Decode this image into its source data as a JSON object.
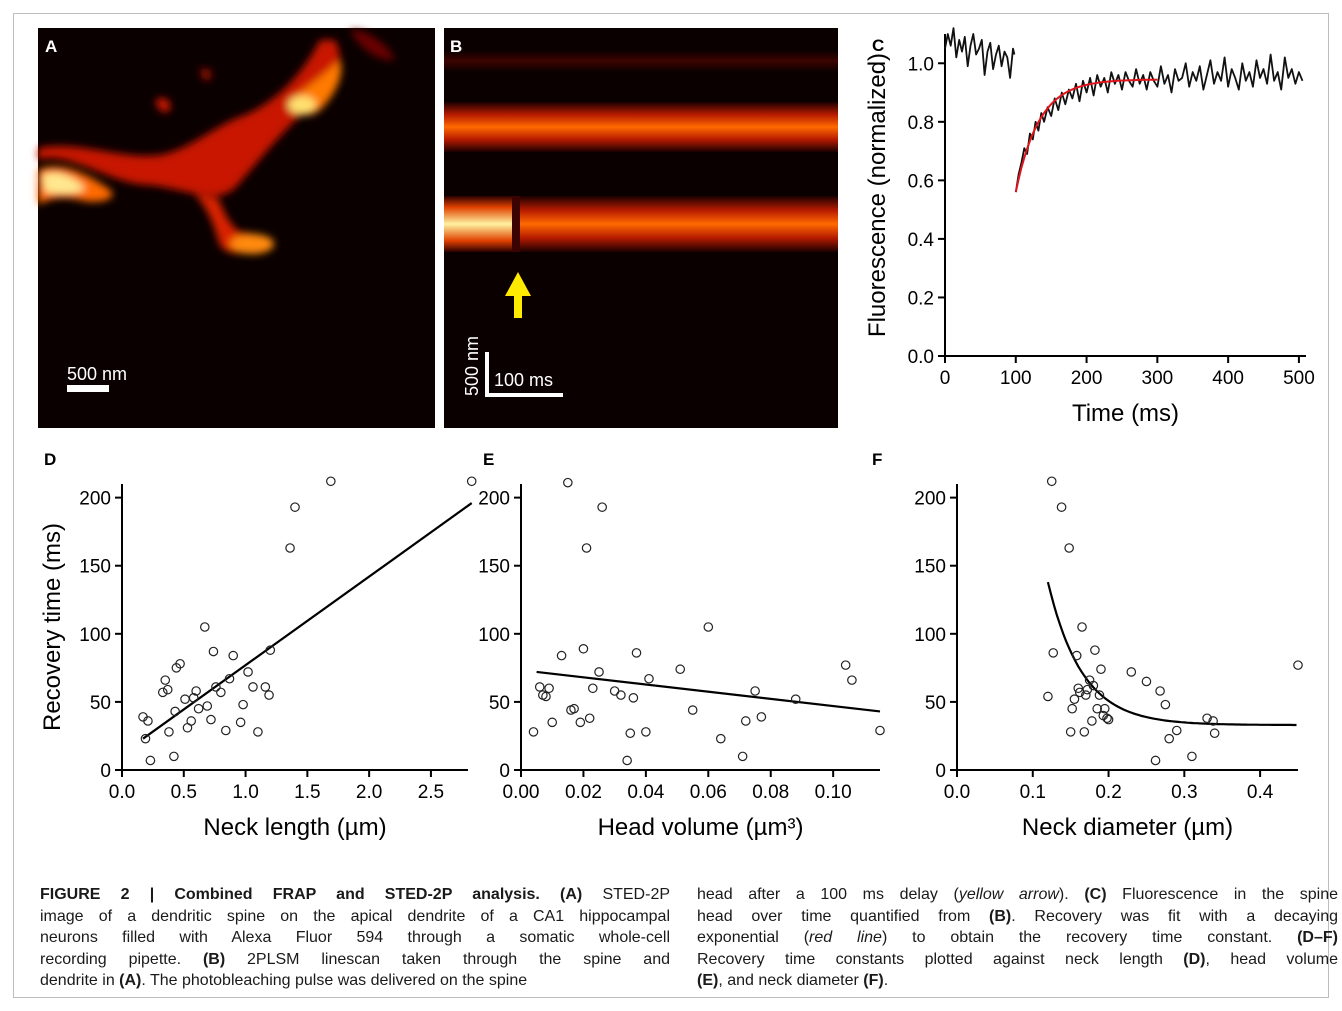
{
  "figure": {
    "panel_labels": [
      "A",
      "B",
      "C",
      "D",
      "E",
      "F"
    ],
    "colors": {
      "background": "#ffffff",
      "image_dark": "#0a0000",
      "hot_red": "#c81400",
      "hot_orange": "#ff7a00",
      "hot_yellow": "#fff6a0",
      "arrow": "#ffea00",
      "fit_line": "#e0141a",
      "trace": "#111111",
      "scatter_marker": "#222222"
    }
  },
  "panel_a": {
    "scalebar_label": "500 nm"
  },
  "panel_b": {
    "scalebar_x_label": "100 ms",
    "scalebar_y_label": "500 nm",
    "arrow_icon": "yellow-up-arrow-icon"
  },
  "caption": {
    "left_lines": [
      [
        {
          "b": "FIGURE 2 | Combined FRAP and STED-2P analysis."
        },
        {
          "t": " "
        },
        {
          "b": "(A)"
        },
        {
          "t": " STED-2P"
        }
      ],
      [
        {
          "t": "image of a dendritic spine on the apical dendrite of a CA1 hippocampal"
        }
      ],
      [
        {
          "t": "neurons filled with Alexa Fluor 594 through a somatic whole-cell"
        }
      ],
      [
        {
          "t": "recording pipette. "
        },
        {
          "b": "(B)"
        },
        {
          "t": " 2PLSM linescan taken through the spine and"
        }
      ],
      [
        {
          "t": "dendrite in "
        },
        {
          "b": "(A)"
        },
        {
          "t": ". The photobleaching pulse was delivered on the spine"
        }
      ]
    ],
    "right_lines": [
      [
        {
          "t": "head after a 100 ms delay ("
        },
        {
          "i": "yellow arrow"
        },
        {
          "t": "). "
        },
        {
          "b": "(C)"
        },
        {
          "t": " Fluorescence in the spine"
        }
      ],
      [
        {
          "t": "head over time quantified from "
        },
        {
          "b": "(B)"
        },
        {
          "t": ". Recovery was fit with a decaying"
        }
      ],
      [
        {
          "t": "exponential ("
        },
        {
          "i": "red line"
        },
        {
          "t": ") to obtain the recovery time constant. "
        },
        {
          "b": "(D–F)"
        }
      ],
      [
        {
          "t": "Recovery time constants plotted against neck length "
        },
        {
          "b": "(D)"
        },
        {
          "t": ", head volume"
        }
      ],
      [
        {
          "b": "(E)"
        },
        {
          "t": ", and neck diameter "
        },
        {
          "b": "(F)"
        },
        {
          "t": "."
        }
      ]
    ]
  },
  "chart_data": [
    {
      "panel": "C",
      "type": "line",
      "xlabel": "Time (ms)",
      "ylabel": "Fluorescence (normalized)",
      "xlim": [
        0,
        510
      ],
      "ylim": [
        0,
        1.1
      ],
      "xticks": [
        0,
        100,
        200,
        300,
        400,
        500
      ],
      "xtick_labels": [
        "0",
        "100",
        "200",
        "300",
        "400",
        "500"
      ],
      "yticks": [
        0.0,
        0.2,
        0.4,
        0.6,
        0.8,
        1.0
      ],
      "ytick_labels": [
        "0.0",
        "0.2",
        "0.4",
        "0.6",
        "0.8",
        "1.0"
      ],
      "series": [
        {
          "role": "trace",
          "segments": [
            {
              "x": [
                0,
                4,
                8,
                12,
                16,
                20,
                24,
                28,
                32,
                36,
                40,
                44,
                48,
                52,
                56,
                60,
                64,
                68,
                72,
                76,
                80,
                84,
                88,
                92,
                96,
                98
              ],
              "y": [
                1.05,
                1.1,
                1.06,
                1.12,
                1.02,
                1.08,
                1.04,
                1.09,
                0.99,
                1.06,
                1.1,
                1.03,
                1.05,
                1.08,
                0.96,
                1.04,
                1.07,
                0.98,
                1.03,
                1.06,
                0.99,
                1.04,
                1.02,
                0.95,
                1.05,
                1.03
              ]
            },
            {
              "x": [
                100,
                104,
                108,
                112,
                116,
                120,
                124,
                128,
                132,
                136,
                140,
                145,
                150,
                155,
                160,
                165,
                170,
                175,
                180,
                185,
                190,
                195,
                200,
                205,
                210,
                215,
                220,
                225,
                230,
                235,
                240,
                245,
                250,
                255,
                260,
                265,
                270,
                275,
                280,
                285,
                290,
                295,
                300,
                305,
                310,
                315,
                320,
                325,
                330,
                335,
                340,
                345,
                350,
                355,
                360,
                365,
                370,
                375,
                380,
                385,
                390,
                395,
                400,
                405,
                410,
                415,
                420,
                425,
                430,
                435,
                440,
                445,
                450,
                455,
                460,
                465,
                470,
                475,
                480,
                485,
                490,
                495,
                500,
                505
              ],
              "y": [
                0.56,
                0.62,
                0.66,
                0.71,
                0.69,
                0.76,
                0.74,
                0.8,
                0.77,
                0.83,
                0.8,
                0.85,
                0.82,
                0.88,
                0.84,
                0.9,
                0.86,
                0.91,
                0.88,
                0.93,
                0.87,
                0.94,
                0.9,
                0.95,
                0.89,
                0.96,
                0.92,
                0.95,
                0.9,
                0.97,
                0.93,
                0.96,
                0.91,
                0.97,
                0.94,
                0.92,
                0.98,
                0.93,
                0.96,
                0.91,
                0.97,
                0.94,
                0.92,
                0.99,
                0.93,
                0.96,
                0.9,
                0.98,
                0.94,
                0.95,
                1.0,
                0.92,
                0.97,
                0.94,
                0.99,
                0.91,
                0.96,
                1.01,
                0.93,
                0.97,
                0.94,
                1.02,
                0.92,
                0.98,
                0.95,
                0.91,
                1.0,
                0.94,
                0.97,
                0.92,
                1.01,
                0.95,
                0.98,
                0.93,
                1.03,
                0.94,
                0.97,
                0.91,
                1.02,
                0.95,
                0.98,
                0.93,
                0.97,
                0.94
              ]
            }
          ]
        },
        {
          "role": "fit",
          "model": "exponential recovery",
          "x_range": [
            100,
            300
          ],
          "plateau": 0.945,
          "start": 0.56,
          "tau_ms": 33
        }
      ]
    },
    {
      "panel": "D",
      "type": "scatter",
      "xlabel": "Neck length (µm)",
      "ylabel": "Recovery time (ms)",
      "xlim": [
        0,
        2.8
      ],
      "ylim": [
        0,
        210
      ],
      "xticks": [
        0.0,
        0.5,
        1.0,
        1.5,
        2.0,
        2.5
      ],
      "xtick_labels": [
        "0.0",
        "0.5",
        "1.0",
        "1.5",
        "2.0",
        "2.5"
      ],
      "yticks": [
        0,
        50,
        100,
        150,
        200
      ],
      "ytick_labels": [
        "0",
        "50",
        "100",
        "150",
        "200"
      ],
      "points": {
        "x": [
          0.17,
          0.19,
          0.21,
          0.23,
          0.33,
          0.35,
          0.37,
          0.38,
          0.42,
          0.43,
          0.44,
          0.47,
          0.51,
          0.53,
          0.56,
          0.58,
          0.6,
          0.62,
          0.67,
          0.69,
          0.72,
          0.74,
          0.76,
          0.8,
          0.84,
          0.87,
          0.9,
          0.96,
          0.98,
          1.02,
          1.06,
          1.1,
          1.16,
          1.19,
          1.2,
          1.36,
          1.4,
          1.69,
          2.83
        ],
        "y": [
          39,
          23,
          36,
          7,
          57,
          66,
          59,
          28,
          10,
          43,
          75,
          78,
          52,
          31,
          36,
          53,
          58,
          45,
          105,
          47,
          37,
          87,
          61,
          57,
          29,
          67,
          84,
          35,
          48,
          72,
          61,
          28,
          61,
          55,
          88,
          163,
          193,
          212,
          212
        ]
      },
      "fit": {
        "type": "linear",
        "x": [
          0.17,
          2.83
        ],
        "y": [
          23,
          196
        ]
      }
    },
    {
      "panel": "E",
      "type": "scatter",
      "xlabel": "Head volume (µm³)",
      "ylabel": "",
      "xlim": [
        0,
        0.115
      ],
      "ylim": [
        0,
        210
      ],
      "xticks": [
        0.0,
        0.02,
        0.04,
        0.06,
        0.08,
        0.1
      ],
      "xtick_labels": [
        "0.00",
        "0.02",
        "0.04",
        "0.06",
        "0.08",
        "0.10"
      ],
      "yticks": [
        0,
        50,
        100,
        150,
        200
      ],
      "ytick_labels": [
        "0",
        "50",
        "100",
        "150",
        "200"
      ],
      "points": {
        "x": [
          0.004,
          0.006,
          0.007,
          0.008,
          0.009,
          0.01,
          0.013,
          0.015,
          0.016,
          0.017,
          0.019,
          0.02,
          0.021,
          0.022,
          0.023,
          0.025,
          0.026,
          0.03,
          0.032,
          0.034,
          0.035,
          0.036,
          0.037,
          0.04,
          0.041,
          0.051,
          0.055,
          0.06,
          0.064,
          0.071,
          0.072,
          0.075,
          0.077,
          0.088,
          0.104,
          0.106,
          0.115
        ],
        "y": [
          28,
          61,
          55,
          54,
          60,
          35,
          84,
          211,
          44,
          45,
          35,
          89,
          163,
          38,
          60,
          72,
          193,
          58,
          55,
          7,
          27,
          53,
          86,
          28,
          67,
          74,
          44,
          105,
          23,
          10,
          36,
          58,
          39,
          52,
          77,
          66,
          29
        ]
      },
      "fit": {
        "type": "linear",
        "x": [
          0.005,
          0.115
        ],
        "y": [
          72,
          43
        ]
      }
    },
    {
      "panel": "F",
      "type": "scatter",
      "xlabel": "Neck diameter (µm)",
      "ylabel": "",
      "xlim": [
        0,
        0.45
      ],
      "ylim": [
        0,
        210
      ],
      "xticks": [
        0.0,
        0.1,
        0.2,
        0.3,
        0.4
      ],
      "xtick_labels": [
        "0.0",
        "0.1",
        "0.2",
        "0.3",
        "0.4"
      ],
      "yticks": [
        0,
        50,
        100,
        150,
        200
      ],
      "ytick_labels": [
        "0",
        "50",
        "100",
        "150",
        "200"
      ],
      "points": {
        "x": [
          0.12,
          0.125,
          0.127,
          0.138,
          0.148,
          0.15,
          0.152,
          0.155,
          0.158,
          0.16,
          0.162,
          0.165,
          0.168,
          0.17,
          0.172,
          0.175,
          0.178,
          0.18,
          0.182,
          0.185,
          0.188,
          0.19,
          0.193,
          0.195,
          0.198,
          0.2,
          0.23,
          0.25,
          0.262,
          0.268,
          0.275,
          0.28,
          0.29,
          0.31,
          0.33,
          0.338,
          0.34,
          0.45
        ],
        "y": [
          54,
          212,
          86,
          193,
          163,
          28,
          45,
          52,
          84,
          60,
          57,
          105,
          28,
          55,
          59,
          66,
          36,
          62,
          88,
          45,
          55,
          74,
          40,
          45,
          38,
          37,
          72,
          65,
          7,
          58,
          48,
          23,
          29,
          10,
          38,
          36,
          27,
          77
        ]
      },
      "fit": {
        "type": "hyperbolic decay",
        "x_range": [
          0.12,
          0.45
        ],
        "asymptote": 33,
        "start": 138
      }
    }
  ]
}
